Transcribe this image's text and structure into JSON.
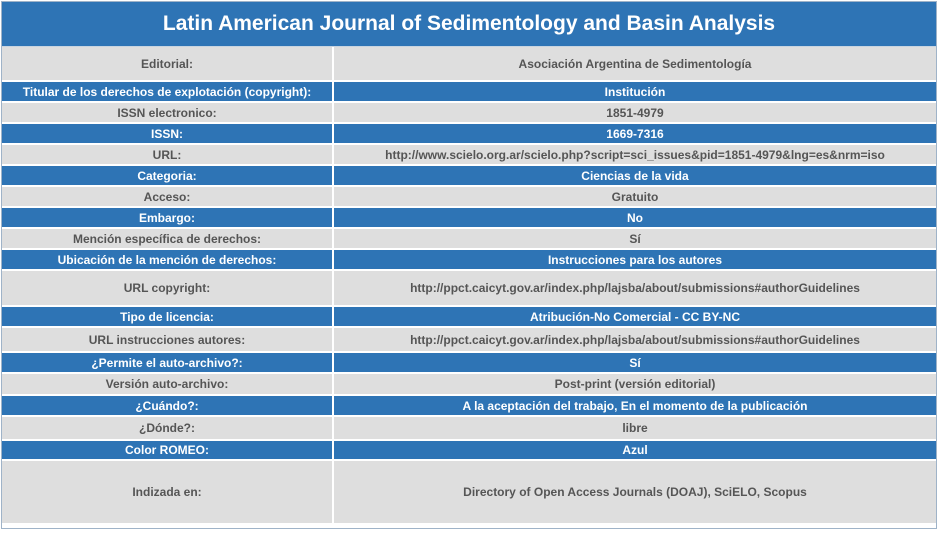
{
  "title": "Latin American Journal of Sedimentology and Basin Analysis",
  "colors": {
    "header": "#2e74b5",
    "row_alt": "#dedede",
    "text_gray": "#555555"
  },
  "rows": [
    {
      "label": "Editorial:",
      "value": "Asociación Argentina de Sedimentología"
    },
    {
      "label": "Titular de los derechos de explotación (copyright):",
      "value": "Institución"
    },
    {
      "label": "ISSN electronico:",
      "value": "1851-4979"
    },
    {
      "label": "ISSN:",
      "value": "1669-7316"
    },
    {
      "label": "URL:",
      "value": "http://www.scielo.org.ar/scielo.php?script=sci_issues&pid=1851-4979&lng=es&nrm=iso"
    },
    {
      "label": "Categoria:",
      "value": "Ciencias de la vida"
    },
    {
      "label": "Acceso:",
      "value": "Gratuito"
    },
    {
      "label": "Embargo:",
      "value": "No"
    },
    {
      "label": "Mención específica de derechos:",
      "value": "Sí"
    },
    {
      "label": "Ubicación de la mención de derechos:",
      "value": "Instrucciones para los autores"
    },
    {
      "label": "URL copyright:",
      "value": "http://ppct.caicyt.gov.ar/index.php/lajsba/about/submissions#authorGuidelines"
    },
    {
      "label": "Tipo de licencia:",
      "value": "Atribución-No Comercial - CC BY-NC"
    },
    {
      "label": "URL instrucciones autores:",
      "value": "http://ppct.caicyt.gov.ar/index.php/lajsba/about/submissions#authorGuidelines"
    },
    {
      "label": "¿Permite el auto-archivo?:",
      "value": "Sí"
    },
    {
      "label": "Versión auto-archivo:",
      "value": "Post-print (versión editorial)"
    },
    {
      "label": "¿Cuándo?:",
      "value": "A la aceptación del trabajo, En el momento de la publicación"
    },
    {
      "label": "¿Dónde?:",
      "value": "libre"
    },
    {
      "label": "Color ROMEO:",
      "value": "Azul"
    },
    {
      "label": "Indizada en:",
      "value": "Directory of Open Access Journals (DOAJ), SciELO, Scopus"
    }
  ]
}
